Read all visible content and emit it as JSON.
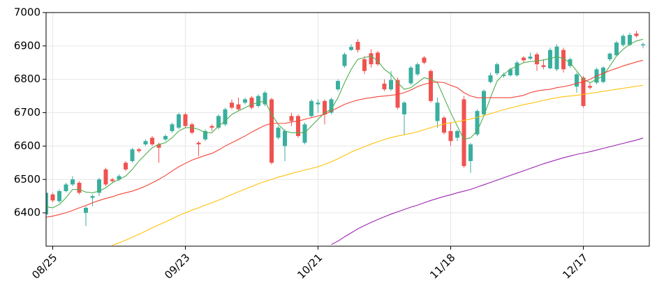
{
  "chart_data": {
    "type": "candlestick",
    "categories": [
      null,
      "08/25",
      null,
      null,
      null,
      null,
      null,
      null,
      null,
      null,
      null,
      null,
      null,
      null,
      null,
      null,
      null,
      null,
      null,
      null,
      null,
      "09/23",
      null,
      null,
      null,
      null,
      null,
      null,
      null,
      null,
      null,
      null,
      null,
      null,
      null,
      null,
      null,
      null,
      null,
      null,
      null,
      "10/21",
      null,
      null,
      null,
      null,
      null,
      null,
      null,
      null,
      null,
      null,
      null,
      null,
      null,
      null,
      null,
      null,
      null,
      null,
      null,
      "11/18",
      null,
      null,
      null,
      null,
      null,
      null,
      null,
      null,
      null,
      null,
      null,
      null,
      null,
      null,
      null,
      null,
      null,
      null,
      null,
      "12/17",
      null,
      null,
      null,
      null,
      null,
      null,
      null,
      null,
      null
    ],
    "open": [
      6395,
      6455,
      6435,
      6465,
      6485,
      6490,
      6400,
      6445,
      6460,
      6530,
      6500,
      6500,
      6550,
      6555,
      6590,
      6605,
      6625,
      6605,
      6620,
      6645,
      6655,
      6695,
      6665,
      6610,
      6620,
      6660,
      6655,
      6665,
      6730,
      6725,
      6730,
      6745,
      6720,
      6725,
      6740,
      6625,
      6600,
      6690,
      6690,
      6610,
      6690,
      6725,
      6735,
      6700,
      6770,
      6840,
      6888,
      6912,
      6860,
      6878,
      6880,
      6787,
      6770,
      6798,
      6695,
      6788,
      6815,
      6865,
      6825,
      6675,
      6685,
      6645,
      6625,
      6740,
      6555,
      6635,
      6695,
      6792,
      6818,
      6810,
      6812,
      6812,
      6865,
      6862,
      6875,
      6842,
      6833,
      6830,
      6888,
      6840,
      6778,
      6805,
      6780,
      6790,
      6792,
      6860,
      6872,
      6903,
      6903,
      6937,
      6902
    ],
    "high": [
      6465,
      6460,
      6470,
      6490,
      6510,
      6495,
      6420,
      6455,
      6505,
      6535,
      6505,
      6515,
      6555,
      6595,
      6595,
      6620,
      6630,
      6610,
      6635,
      6670,
      6700,
      6700,
      6670,
      6615,
      6650,
      6665,
      6695,
      6715,
      6740,
      6745,
      6745,
      6750,
      6755,
      6765,
      6745,
      6660,
      6650,
      6700,
      6695,
      6670,
      6740,
      6740,
      6740,
      6745,
      6800,
      6880,
      6905,
      6920,
      6870,
      6890,
      6885,
      6800,
      6825,
      6805,
      6735,
      6840,
      6850,
      6870,
      6830,
      6745,
      6690,
      6670,
      6650,
      6750,
      6610,
      6710,
      6770,
      6820,
      6850,
      6820,
      6835,
      6855,
      6870,
      6880,
      6880,
      6860,
      6895,
      6905,
      6895,
      6865,
      6820,
      6810,
      6790,
      6835,
      6840,
      6880,
      6915,
      6935,
      6940,
      6945,
      6910
    ],
    "low": [
      6385,
      6432,
      6430,
      6462,
      6480,
      6455,
      6360,
      6420,
      6450,
      6480,
      6490,
      6495,
      6525,
      6550,
      6580,
      6600,
      6600,
      6550,
      6615,
      6640,
      6650,
      6655,
      6635,
      6570,
      6615,
      6645,
      6650,
      6660,
      6710,
      6705,
      6725,
      6710,
      6715,
      6720,
      6545,
      6620,
      6555,
      6660,
      6625,
      6605,
      6685,
      6700,
      6665,
      6695,
      6765,
      6835,
      6885,
      6880,
      6815,
      6835,
      6840,
      6765,
      6765,
      6710,
      6635,
      6783,
      6810,
      6845,
      6730,
      6655,
      6635,
      6600,
      6615,
      6535,
      6520,
      6630,
      6690,
      6788,
      6812,
      6805,
      6808,
      6808,
      6850,
      6858,
      6825,
      6830,
      6830,
      6825,
      6820,
      6835,
      6760,
      6715,
      6770,
      6785,
      6788,
      6855,
      6868,
      6898,
      6900,
      6925,
      6893
    ],
    "close": [
      6460,
      6437,
      6465,
      6485,
      6500,
      6460,
      6415,
      6450,
      6500,
      6485,
      6495,
      6510,
      6530,
      6590,
      6585,
      6615,
      6605,
      6595,
      6630,
      6665,
      6695,
      6660,
      6640,
      6605,
      6645,
      6655,
      6690,
      6710,
      6715,
      6710,
      6740,
      6715,
      6750,
      6760,
      6550,
      6655,
      6645,
      6675,
      6630,
      6665,
      6735,
      6730,
      6695,
      6740,
      6795,
      6875,
      6897,
      6888,
      6825,
      6845,
      6845,
      6770,
      6798,
      6715,
      6730,
      6835,
      6845,
      6850,
      6735,
      6730,
      6640,
      6615,
      6645,
      6540,
      6605,
      6705,
      6765,
      6812,
      6845,
      6814,
      6830,
      6850,
      6857,
      6868,
      6845,
      6837,
      6888,
      6898,
      6830,
      6860,
      6815,
      6720,
      6775,
      6830,
      6835,
      6877,
      6910,
      6930,
      6933,
      6930,
      6905
    ],
    "up_color": "#3aaf9f",
    "down_color": "#ef5350",
    "series": [
      {
        "color": "#4caf50",
        "values": [
          6418,
          6415,
          6425,
          6445,
          6470,
          6470,
          6462,
          6460,
          6465,
          6475,
          6490,
          6500,
          6510,
          6530,
          6555,
          6575,
          6595,
          6605,
          6610,
          6625,
          6645,
          6655,
          6655,
          6650,
          6640,
          6640,
          6660,
          6675,
          6695,
          6705,
          6715,
          6725,
          6730,
          6735,
          6695,
          6665,
          6645,
          6640,
          6640,
          6640,
          6660,
          6680,
          6700,
          6710,
          6745,
          6790,
          6830,
          6860,
          6865,
          6870,
          6855,
          6830,
          6815,
          6790,
          6770,
          6775,
          6790,
          6805,
          6800,
          6790,
          6745,
          6700,
          6660,
          6620,
          6625,
          6645,
          6690,
          6745,
          6795,
          6815,
          6830,
          6840,
          6850,
          6853,
          6855,
          6858,
          6862,
          6868,
          6862,
          6850,
          6825,
          6800,
          6790,
          6800,
          6810,
          6840,
          6870,
          6890,
          6905,
          6915,
          6920
        ]
      },
      {
        "color": "#f44336",
        "values": [
          6387,
          6390,
          6395,
          6400,
          6407,
          6415,
          6422,
          6430,
          6437,
          6443,
          6448,
          6455,
          6460,
          6465,
          6472,
          6480,
          6490,
          6500,
          6512,
          6525,
          6538,
          6548,
          6558,
          6565,
          6572,
          6578,
          6588,
          6600,
          6610,
          6620,
          6630,
          6642,
          6652,
          6662,
          6668,
          6668,
          6668,
          6672,
          6675,
          6680,
          6685,
          6690,
          6695,
          6705,
          6715,
          6725,
          6732,
          6738,
          6742,
          6745,
          6748,
          6750,
          6752,
          6755,
          6760,
          6768,
          6778,
          6785,
          6790,
          6792,
          6790,
          6782,
          6775,
          6760,
          6750,
          6745,
          6745,
          6745,
          6745,
          6745,
          6745,
          6748,
          6752,
          6760,
          6765,
          6768,
          6770,
          6775,
          6778,
          6782,
          6788,
          6792,
          6800,
          6810,
          6818,
          6826,
          6833,
          6840,
          6846,
          6852,
          6857
        ]
      },
      {
        "color": "#ffc107",
        "values": [
          null,
          null,
          null,
          null,
          null,
          null,
          null,
          null,
          null,
          null,
          6303,
          6310,
          6318,
          6327,
          6336,
          6345,
          6355,
          6364,
          6373,
          6382,
          6392,
          6400,
          6408,
          6415,
          6423,
          6430,
          6438,
          6446,
          6455,
          6463,
          6471,
          6479,
          6487,
          6494,
          6500,
          6507,
          6512,
          6518,
          6523,
          6528,
          6533,
          6538,
          6545,
          6553,
          6562,
          6572,
          6582,
          6590,
          6598,
          6606,
          6613,
          6620,
          6625,
          6630,
          6634,
          6638,
          6643,
          6649,
          6655,
          6661,
          6666,
          6670,
          6673,
          6677,
          6681,
          6686,
          6691,
          6697,
          6703,
          6709,
          6714,
          6719,
          6724,
          6728,
          6732,
          6737,
          6741,
          6745,
          6748,
          6750,
          6752,
          6755,
          6758,
          6761,
          6764,
          6767,
          6770,
          6773,
          6776,
          6779,
          6782
        ]
      },
      {
        "color": "#9c27b0",
        "values": [
          null,
          null,
          null,
          null,
          null,
          null,
          null,
          null,
          null,
          null,
          null,
          null,
          null,
          null,
          null,
          null,
          null,
          null,
          null,
          null,
          null,
          null,
          null,
          null,
          null,
          null,
          null,
          null,
          null,
          null,
          null,
          null,
          null,
          null,
          null,
          null,
          null,
          null,
          null,
          null,
          null,
          null,
          null,
          6305,
          6315,
          6328,
          6340,
          6352,
          6362,
          6371,
          6380,
          6388,
          6396,
          6403,
          6410,
          6417,
          6423,
          6430,
          6437,
          6443,
          6449,
          6454,
          6460,
          6465,
          6470,
          6477,
          6484,
          6491,
          6498,
          6505,
          6512,
          6519,
          6526,
          6533,
          6540,
          6547,
          6553,
          6559,
          6565,
          6570,
          6575,
          6579,
          6583,
          6588,
          6593,
          6598,
          6603,
          6608,
          6613,
          6618,
          6624
        ]
      }
    ],
    "ylim": [
      6300,
      7000
    ],
    "yticks": [
      6400,
      6500,
      6600,
      6700,
      6800,
      6900,
      7000
    ],
    "grid": true
  }
}
